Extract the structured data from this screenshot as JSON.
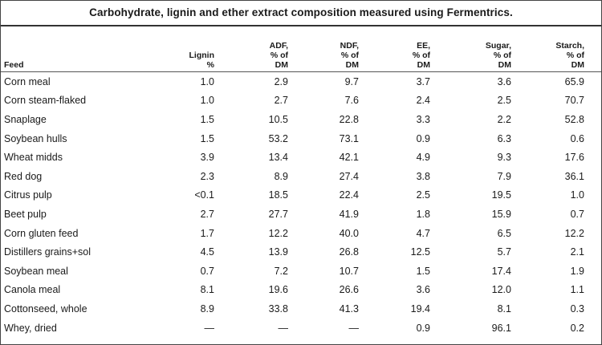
{
  "title": "Carbohydrate, lignin and ether extract composition measured using Fermentrics.",
  "columns": {
    "feed": "Feed",
    "lignin": [
      "Lignin",
      "%"
    ],
    "adf": [
      "ADF,",
      "% of",
      "DM"
    ],
    "ndf": [
      "NDF,",
      "% of",
      "DM"
    ],
    "ee": [
      "EE,",
      "% of",
      "DM"
    ],
    "sugar": [
      "Sugar,",
      "% of",
      "DM"
    ],
    "starch": [
      "Starch,",
      "% of",
      "DM"
    ]
  },
  "rows": [
    {
      "feed": "Corn meal",
      "lignin": "1.0",
      "adf": "2.9",
      "ndf": "9.7",
      "ee": "3.7",
      "sugar": "3.6",
      "starch": "65.9"
    },
    {
      "feed": "Corn steam-flaked",
      "lignin": "1.0",
      "adf": "2.7",
      "ndf": "7.6",
      "ee": "2.4",
      "sugar": "2.5",
      "starch": "70.7"
    },
    {
      "feed": "Snaplage",
      "lignin": "1.5",
      "adf": "10.5",
      "ndf": "22.8",
      "ee": "3.3",
      "sugar": "2.2",
      "starch": "52.8"
    },
    {
      "feed": "Soybean hulls",
      "lignin": "1.5",
      "adf": "53.2",
      "ndf": "73.1",
      "ee": "0.9",
      "sugar": "6.3",
      "starch": "0.6"
    },
    {
      "feed": "Wheat midds",
      "lignin": "3.9",
      "adf": "13.4",
      "ndf": "42.1",
      "ee": "4.9",
      "sugar": "9.3",
      "starch": "17.6"
    },
    {
      "feed": "Red dog",
      "lignin": "2.3",
      "adf": "8.9",
      "ndf": "27.4",
      "ee": "3.8",
      "sugar": "7.9",
      "starch": "36.1"
    },
    {
      "feed": "Citrus pulp",
      "lignin": "<0.1",
      "adf": "18.5",
      "ndf": "22.4",
      "ee": "2.5",
      "sugar": "19.5",
      "starch": "1.0"
    },
    {
      "feed": "Beet pulp",
      "lignin": "2.7",
      "adf": "27.7",
      "ndf": "41.9",
      "ee": "1.8",
      "sugar": "15.9",
      "starch": "0.7"
    },
    {
      "feed": "Corn gluten feed",
      "lignin": "1.7",
      "adf": "12.2",
      "ndf": "40.0",
      "ee": "4.7",
      "sugar": "6.5",
      "starch": "12.2"
    },
    {
      "feed": "Distillers grains+sol",
      "lignin": "4.5",
      "adf": "13.9",
      "ndf": "26.8",
      "ee": "12.5",
      "sugar": "5.7",
      "starch": "2.1"
    },
    {
      "feed": "Soybean meal",
      "lignin": "0.7",
      "adf": "7.2",
      "ndf": "10.7",
      "ee": "1.5",
      "sugar": "17.4",
      "starch": "1.9"
    },
    {
      "feed": "Canola meal",
      "lignin": "8.1",
      "adf": "19.6",
      "ndf": "26.6",
      "ee": "3.6",
      "sugar": "12.0",
      "starch": "1.1"
    },
    {
      "feed": "Cottonseed, whole",
      "lignin": "8.9",
      "adf": "33.8",
      "ndf": "41.3",
      "ee": "19.4",
      "sugar": "8.1",
      "starch": "0.3"
    },
    {
      "feed": "Whey, dried",
      "lignin": "—",
      "adf": "—",
      "ndf": "—",
      "ee": "0.9",
      "sugar": "96.1",
      "starch": "0.2"
    }
  ]
}
